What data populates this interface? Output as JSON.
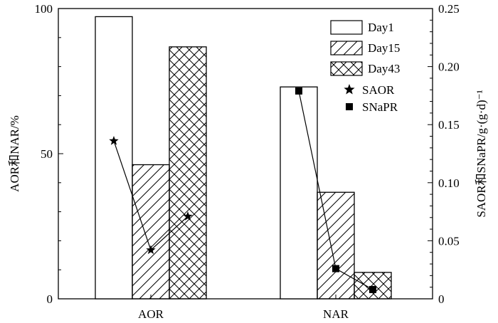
{
  "chart_data": {
    "type": "bar",
    "categories": [
      "AOR",
      "NAR"
    ],
    "series": [
      {
        "name": "Day1",
        "values": [
          97.2,
          73.0
        ],
        "pattern": "none"
      },
      {
        "name": "Day15",
        "values": [
          46.2,
          36.7
        ],
        "pattern": "hatch-diagonal"
      },
      {
        "name": "Day43",
        "values": [
          86.8,
          9.1
        ],
        "pattern": "crosshatch"
      }
    ],
    "overlay_series": [
      {
        "name": "SAOR",
        "axis": "right",
        "category": "AOR",
        "marker": "star",
        "values": [
          0.136,
          0.042,
          0.071
        ]
      },
      {
        "name": "SNaPR",
        "axis": "right",
        "category": "NAR",
        "marker": "square",
        "values": [
          0.179,
          0.026,
          0.008
        ]
      }
    ],
    "ylabel": "AOR和NAR/%",
    "y2label": "SAOR和SNaPR/g·(g·d)⁻¹",
    "ylim": [
      0,
      100
    ],
    "y2lim": [
      0,
      0.25
    ],
    "yticks": [
      "0",
      "50",
      "100"
    ],
    "y2ticks": [
      "0",
      "0.05",
      "0.10",
      "0.15",
      "0.20",
      "0.25"
    ],
    "legend_position": "top-right",
    "grid": false
  },
  "colors": {
    "stroke": "#000000",
    "background": "#ffffff"
  }
}
